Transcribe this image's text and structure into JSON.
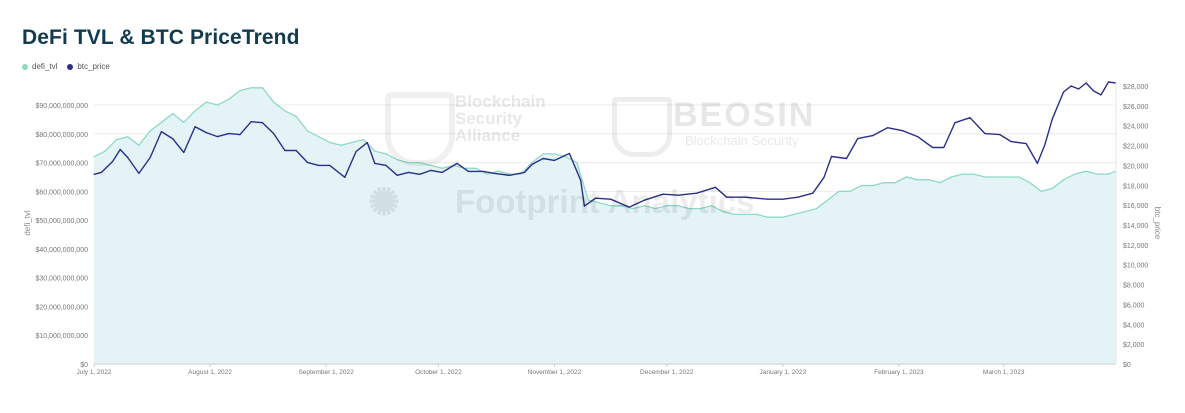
{
  "chart_data": {
    "type": "area",
    "title": "DeFi TVL & BTC PriceTrend",
    "ylabel_left": "defi_tvl",
    "ylabel_right": "btc_price",
    "legend": [
      "defi_tvl",
      "btc_price"
    ],
    "legend_position": "top-left",
    "grid": true,
    "x_tick_labels": [
      "July 1, 2022",
      "August 1, 2022",
      "September 1, 2022",
      "October 1, 2022",
      "November 1, 2022",
      "December 1, 2022",
      "January 1, 2023",
      "February 1, 2023",
      "March 1, 2023"
    ],
    "y_left_ticks": [
      "$0",
      "$10,000,000,000",
      "$20,000,000,000",
      "$30,000,000,000",
      "$40,000,000,000",
      "$50,000,000,000",
      "$60,000,000,000",
      "$70,000,000,000",
      "$80,000,000,000",
      "$90,000,000,000"
    ],
    "y_right_ticks": [
      "$0",
      "$2,000",
      "$4,000",
      "$6,000",
      "$8,000",
      "$10,000",
      "$12,000",
      "$14,000",
      "$16,000",
      "$18,000",
      "$20,000",
      "$22,000",
      "$24,000",
      "$26,000",
      "$28,000"
    ],
    "ylim_left": [
      0,
      98000000000
    ],
    "ylim_right": [
      0,
      28400
    ],
    "x_range": [
      "2022-07-01",
      "2023-03-31"
    ],
    "series": [
      {
        "name": "defi_tvl",
        "axis": "left",
        "color": "#8fd9c5",
        "fill": "#e3f3f6",
        "points": [
          [
            "2022-07-01",
            72000000000
          ],
          [
            "2022-07-04",
            74000000000
          ],
          [
            "2022-07-07",
            78000000000
          ],
          [
            "2022-07-10",
            79000000000
          ],
          [
            "2022-07-13",
            76000000000
          ],
          [
            "2022-07-16",
            81000000000
          ],
          [
            "2022-07-19",
            84000000000
          ],
          [
            "2022-07-22",
            87000000000
          ],
          [
            "2022-07-25",
            84000000000
          ],
          [
            "2022-07-28",
            88000000000
          ],
          [
            "2022-07-31",
            91000000000
          ],
          [
            "2022-08-03",
            90000000000
          ],
          [
            "2022-08-06",
            92000000000
          ],
          [
            "2022-08-09",
            95000000000
          ],
          [
            "2022-08-12",
            96000000000
          ],
          [
            "2022-08-15",
            96000000000
          ],
          [
            "2022-08-18",
            91000000000
          ],
          [
            "2022-08-21",
            88000000000
          ],
          [
            "2022-08-24",
            86000000000
          ],
          [
            "2022-08-27",
            81000000000
          ],
          [
            "2022-08-30",
            79000000000
          ],
          [
            "2022-09-02",
            77000000000
          ],
          [
            "2022-09-05",
            76000000000
          ],
          [
            "2022-09-08",
            77000000000
          ],
          [
            "2022-09-11",
            78000000000
          ],
          [
            "2022-09-14",
            74000000000
          ],
          [
            "2022-09-17",
            73000000000
          ],
          [
            "2022-09-20",
            71000000000
          ],
          [
            "2022-09-23",
            70000000000
          ],
          [
            "2022-09-26",
            70000000000
          ],
          [
            "2022-09-29",
            69000000000
          ],
          [
            "2022-10-02",
            68000000000
          ],
          [
            "2022-10-05",
            69000000000
          ],
          [
            "2022-10-08",
            68000000000
          ],
          [
            "2022-10-11",
            68000000000
          ],
          [
            "2022-10-14",
            66000000000
          ],
          [
            "2022-10-17",
            67000000000
          ],
          [
            "2022-10-20",
            66000000000
          ],
          [
            "2022-10-23",
            66000000000
          ],
          [
            "2022-10-26",
            70000000000
          ],
          [
            "2022-10-29",
            73000000000
          ],
          [
            "2022-11-01",
            73000000000
          ],
          [
            "2022-11-04",
            72000000000
          ],
          [
            "2022-11-07",
            70000000000
          ],
          [
            "2022-11-10",
            57000000000
          ],
          [
            "2022-11-13",
            56000000000
          ],
          [
            "2022-11-16",
            55000000000
          ],
          [
            "2022-11-19",
            55000000000
          ],
          [
            "2022-11-22",
            54000000000
          ],
          [
            "2022-11-25",
            55000000000
          ],
          [
            "2022-11-28",
            54000000000
          ],
          [
            "2022-12-01",
            55000000000
          ],
          [
            "2022-12-04",
            55000000000
          ],
          [
            "2022-12-07",
            54000000000
          ],
          [
            "2022-12-10",
            54000000000
          ],
          [
            "2022-12-13",
            55000000000
          ],
          [
            "2022-12-16",
            53000000000
          ],
          [
            "2022-12-19",
            52000000000
          ],
          [
            "2022-12-22",
            52000000000
          ],
          [
            "2022-12-25",
            52000000000
          ],
          [
            "2022-12-28",
            51000000000
          ],
          [
            "2023-01-01",
            51000000000
          ],
          [
            "2023-01-04",
            52000000000
          ],
          [
            "2023-01-07",
            53000000000
          ],
          [
            "2023-01-10",
            54000000000
          ],
          [
            "2023-01-13",
            57000000000
          ],
          [
            "2023-01-16",
            60000000000
          ],
          [
            "2023-01-19",
            60000000000
          ],
          [
            "2023-01-22",
            62000000000
          ],
          [
            "2023-01-25",
            62000000000
          ],
          [
            "2023-01-28",
            63000000000
          ],
          [
            "2023-01-31",
            63000000000
          ],
          [
            "2023-02-03",
            65000000000
          ],
          [
            "2023-02-06",
            64000000000
          ],
          [
            "2023-02-09",
            64000000000
          ],
          [
            "2023-02-12",
            63000000000
          ],
          [
            "2023-02-15",
            65000000000
          ],
          [
            "2023-02-18",
            66000000000
          ],
          [
            "2023-02-21",
            66000000000
          ],
          [
            "2023-02-24",
            65000000000
          ],
          [
            "2023-02-27",
            65000000000
          ],
          [
            "2023-03-02",
            65000000000
          ],
          [
            "2023-03-05",
            65000000000
          ],
          [
            "2023-03-08",
            63000000000
          ],
          [
            "2023-03-11",
            60000000000
          ],
          [
            "2023-03-14",
            61000000000
          ],
          [
            "2023-03-17",
            64000000000
          ],
          [
            "2023-03-20",
            66000000000
          ],
          [
            "2023-03-23",
            67000000000
          ],
          [
            "2023-03-26",
            66000000000
          ],
          [
            "2023-03-29",
            66000000000
          ],
          [
            "2023-03-31",
            67000000000
          ]
        ]
      },
      {
        "name": "btc_price",
        "axis": "right",
        "color": "#2b2f8a",
        "points": [
          [
            "2022-07-01",
            19100
          ],
          [
            "2022-07-03",
            19300
          ],
          [
            "2022-07-06",
            20400
          ],
          [
            "2022-07-08",
            21600
          ],
          [
            "2022-07-10",
            20800
          ],
          [
            "2022-07-13",
            19200
          ],
          [
            "2022-07-16",
            20800
          ],
          [
            "2022-07-19",
            23400
          ],
          [
            "2022-07-22",
            22700
          ],
          [
            "2022-07-25",
            21300
          ],
          [
            "2022-07-28",
            23900
          ],
          [
            "2022-07-31",
            23300
          ],
          [
            "2022-08-03",
            22900
          ],
          [
            "2022-08-06",
            23200
          ],
          [
            "2022-08-09",
            23100
          ],
          [
            "2022-08-12",
            24400
          ],
          [
            "2022-08-15",
            24300
          ],
          [
            "2022-08-18",
            23200
          ],
          [
            "2022-08-21",
            21500
          ],
          [
            "2022-08-24",
            21500
          ],
          [
            "2022-08-27",
            20300
          ],
          [
            "2022-08-30",
            20000
          ],
          [
            "2022-09-02",
            20000
          ],
          [
            "2022-09-06",
            18800
          ],
          [
            "2022-09-09",
            21400
          ],
          [
            "2022-09-12",
            22300
          ],
          [
            "2022-09-14",
            20200
          ],
          [
            "2022-09-17",
            20000
          ],
          [
            "2022-09-20",
            19000
          ],
          [
            "2022-09-23",
            19300
          ],
          [
            "2022-09-26",
            19100
          ],
          [
            "2022-09-29",
            19500
          ],
          [
            "2022-10-02",
            19300
          ],
          [
            "2022-10-06",
            20200
          ],
          [
            "2022-10-09",
            19400
          ],
          [
            "2022-10-13",
            19400
          ],
          [
            "2022-10-16",
            19200
          ],
          [
            "2022-10-20",
            19000
          ],
          [
            "2022-10-24",
            19300
          ],
          [
            "2022-10-26",
            20100
          ],
          [
            "2022-10-29",
            20700
          ],
          [
            "2022-11-01",
            20500
          ],
          [
            "2022-11-05",
            21200
          ],
          [
            "2022-11-08",
            18500
          ],
          [
            "2022-11-09",
            15900
          ],
          [
            "2022-11-12",
            16700
          ],
          [
            "2022-11-16",
            16600
          ],
          [
            "2022-11-21",
            15800
          ],
          [
            "2022-11-25",
            16500
          ],
          [
            "2022-11-30",
            17100
          ],
          [
            "2022-12-04",
            17000
          ],
          [
            "2022-12-09",
            17200
          ],
          [
            "2022-12-14",
            17800
          ],
          [
            "2022-12-17",
            16800
          ],
          [
            "2022-12-22",
            16800
          ],
          [
            "2022-12-28",
            16600
          ],
          [
            "2023-01-01",
            16600
          ],
          [
            "2023-01-05",
            16800
          ],
          [
            "2023-01-09",
            17200
          ],
          [
            "2023-01-12",
            18800
          ],
          [
            "2023-01-14",
            20900
          ],
          [
            "2023-01-18",
            20700
          ],
          [
            "2023-01-21",
            22700
          ],
          [
            "2023-01-25",
            23000
          ],
          [
            "2023-01-29",
            23800
          ],
          [
            "2023-02-02",
            23500
          ],
          [
            "2023-02-06",
            22900
          ],
          [
            "2023-02-10",
            21800
          ],
          [
            "2023-02-13",
            21800
          ],
          [
            "2023-02-16",
            24300
          ],
          [
            "2023-02-20",
            24800
          ],
          [
            "2023-02-24",
            23200
          ],
          [
            "2023-02-28",
            23100
          ],
          [
            "2023-03-03",
            22400
          ],
          [
            "2023-03-07",
            22200
          ],
          [
            "2023-03-10",
            20200
          ],
          [
            "2023-03-12",
            22100
          ],
          [
            "2023-03-14",
            24700
          ],
          [
            "2023-03-17",
            27400
          ],
          [
            "2023-03-19",
            28000
          ],
          [
            "2023-03-21",
            27700
          ],
          [
            "2023-03-23",
            28300
          ],
          [
            "2023-03-25",
            27500
          ],
          [
            "2023-03-27",
            27100
          ],
          [
            "2023-03-29",
            28400
          ],
          [
            "2023-03-31",
            28300
          ]
        ]
      }
    ]
  },
  "watermarks": {
    "alliance_lines": [
      "Blockchain",
      "Security",
      "Alliance"
    ],
    "beosin": "BEOSIN",
    "beosin_sub": "Blockchain Security",
    "footprint": "Footprint Analytics"
  }
}
